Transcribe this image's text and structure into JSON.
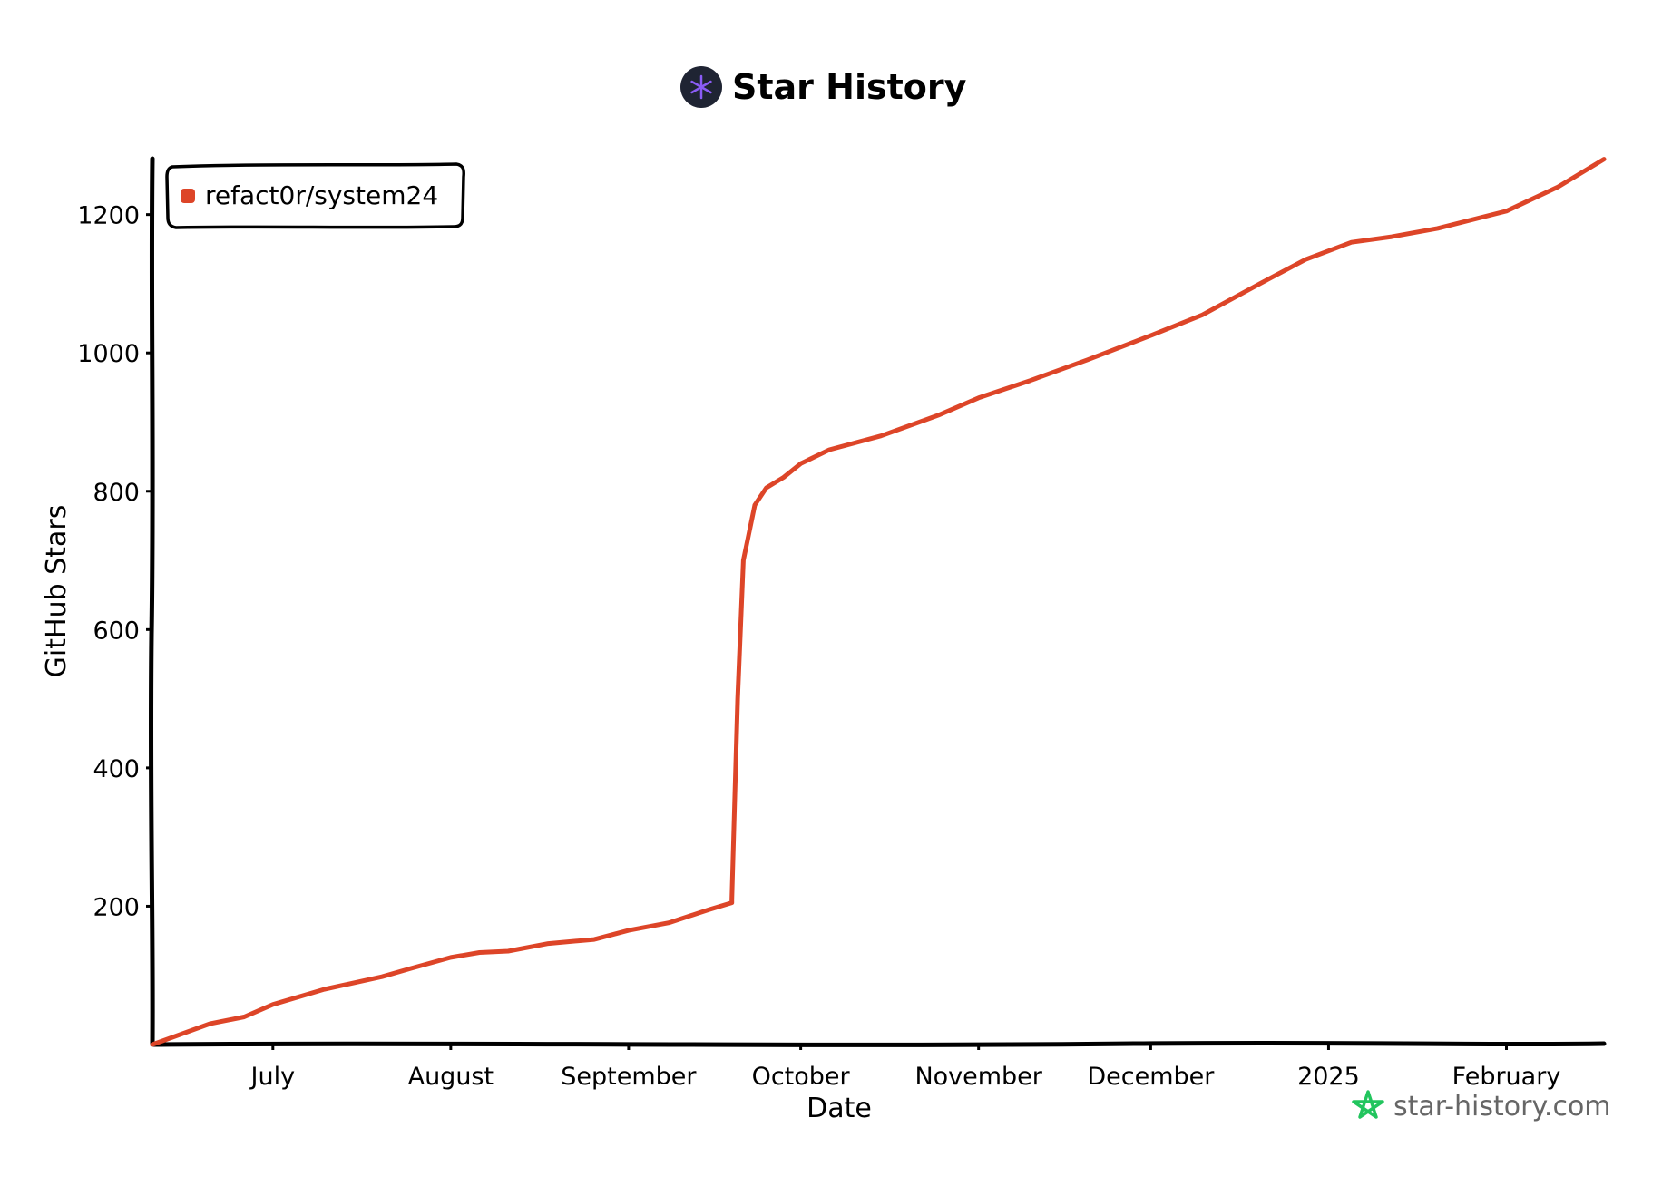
{
  "header": {
    "title": "Star History"
  },
  "watermark": {
    "text": "star-history.com",
    "color": "#22c55e"
  },
  "colors": {
    "series": "#dd4528",
    "axis": "#000000",
    "logo_bg": "#1f2433",
    "logo_star": "#8b5cf6"
  },
  "chart_data": {
    "type": "line",
    "xlabel": "Date",
    "ylabel": "GitHub Stars",
    "x_type": "date",
    "xlim": [
      "2024-06-10",
      "2025-02-18"
    ],
    "ylim": [
      0,
      1290
    ],
    "y_ticks": [
      200,
      400,
      600,
      800,
      1000,
      1200
    ],
    "x_ticks": [
      {
        "date": "2024-07-01",
        "label": "July"
      },
      {
        "date": "2024-08-01",
        "label": "August"
      },
      {
        "date": "2024-09-01",
        "label": "September"
      },
      {
        "date": "2024-10-01",
        "label": "October"
      },
      {
        "date": "2024-11-01",
        "label": "November"
      },
      {
        "date": "2024-12-01",
        "label": "December"
      },
      {
        "date": "2025-01-01",
        "label": "2025"
      },
      {
        "date": "2025-02-01",
        "label": "February"
      }
    ],
    "grid": false,
    "legend_position": "top-left",
    "series": [
      {
        "name": "refact0r/system24",
        "color": "#dd4528",
        "points": [
          [
            "2024-06-10",
            0
          ],
          [
            "2024-06-20",
            30
          ],
          [
            "2024-06-26",
            40
          ],
          [
            "2024-07-01",
            58
          ],
          [
            "2024-07-10",
            80
          ],
          [
            "2024-07-20",
            98
          ],
          [
            "2024-07-25",
            110
          ],
          [
            "2024-08-01",
            126
          ],
          [
            "2024-08-06",
            133
          ],
          [
            "2024-08-11",
            135
          ],
          [
            "2024-08-18",
            146
          ],
          [
            "2024-08-26",
            152
          ],
          [
            "2024-09-01",
            165
          ],
          [
            "2024-09-08",
            176
          ],
          [
            "2024-09-15",
            195
          ],
          [
            "2024-09-19",
            205
          ],
          [
            "2024-09-19",
            210
          ],
          [
            "2024-09-20",
            500
          ],
          [
            "2024-09-21",
            700
          ],
          [
            "2024-09-23",
            780
          ],
          [
            "2024-09-25",
            805
          ],
          [
            "2024-09-28",
            820
          ],
          [
            "2024-10-01",
            840
          ],
          [
            "2024-10-06",
            860
          ],
          [
            "2024-10-15",
            880
          ],
          [
            "2024-10-25",
            910
          ],
          [
            "2024-11-01",
            935
          ],
          [
            "2024-11-10",
            960
          ],
          [
            "2024-11-20",
            990
          ],
          [
            "2024-12-01",
            1025
          ],
          [
            "2024-12-10",
            1055
          ],
          [
            "2024-12-20",
            1100
          ],
          [
            "2024-12-28",
            1135
          ],
          [
            "2025-01-05",
            1160
          ],
          [
            "2025-01-12",
            1168
          ],
          [
            "2025-01-20",
            1180
          ],
          [
            "2025-02-01",
            1205
          ],
          [
            "2025-02-10",
            1240
          ],
          [
            "2025-02-18",
            1280
          ]
        ]
      }
    ]
  }
}
